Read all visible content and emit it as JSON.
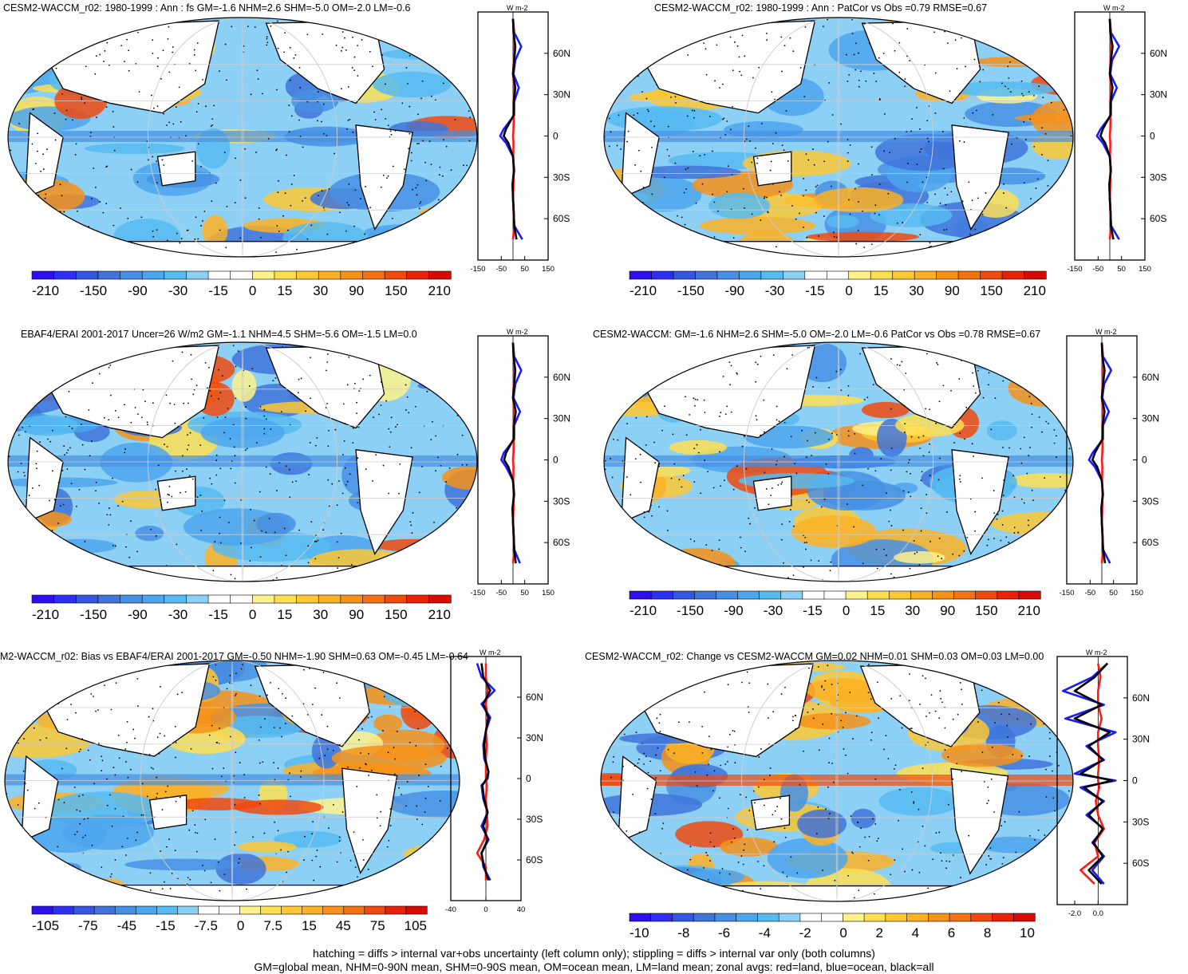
{
  "figure": {
    "footer_line1": "hatching = diffs > internal var+obs uncertainty (left column only); stippling = diffs > internal var only (both columns)",
    "footer_line2": "GM=global mean, NHM=0-90N mean, SHM=0-90S mean, OM=ocean mean, LM=land mean; zonal avgs: red=land, blue=ocean, black=all"
  },
  "colors": {
    "land": "#ff1a1a",
    "ocean": "#1a1aff",
    "all": "#000000",
    "colormap": [
      "#2e10ef",
      "#2d2ff5",
      "#3557e0",
      "#3f74db",
      "#4690e4",
      "#4ca6ed",
      "#56bbf1",
      "#8dd0f5",
      "#ffffff",
      "#ffffff",
      "#fff28a",
      "#fedf52",
      "#fdc832",
      "#fbb124",
      "#f6921a",
      "#f27214",
      "#ef4a0f",
      "#e82107",
      "#d80b04"
    ]
  },
  "panels": [
    {
      "id": "p1",
      "title": "CESM2-WACCM_r02: 1980-1999 : Ann : fs GM=-1.6 NHM=2.6 SHM=-5.0 OM=-2.0 LM=-0.6",
      "colorbar_labels": [
        "-210",
        "-150",
        "-90",
        "-30",
        "-15",
        "0",
        "15",
        "30",
        "90",
        "150",
        "210"
      ],
      "zonal_unit": "W m-2",
      "lat_ticks": [
        "60N",
        "30N",
        "0",
        "30S",
        "60S"
      ],
      "x_ticks": [
        "-150",
        "-50",
        "50",
        "150"
      ]
    },
    {
      "id": "p2",
      "title": "CESM2-WACCM_r02: 1980-1999 : Ann : PatCor vs Obs =0.79 RMSE=0.67",
      "colorbar_labels": [
        "-210",
        "-150",
        "-90",
        "-30",
        "-15",
        "0",
        "15",
        "30",
        "90",
        "150",
        "210"
      ],
      "zonal_unit": "W m-2",
      "lat_ticks": [
        "60N",
        "30N",
        "0",
        "30S",
        "60S"
      ],
      "x_ticks": [
        "-150",
        "-50",
        "50",
        "150"
      ]
    },
    {
      "id": "p3",
      "title": "EBAF4/ERAI 2001-2017 Uncer=26 W/m2 GM=-1.1 NHM=4.5 SHM=-5.6 OM=-1.5 LM=0.0",
      "colorbar_labels": [
        "-210",
        "-150",
        "-90",
        "-30",
        "-15",
        "0",
        "15",
        "30",
        "90",
        "150",
        "210"
      ],
      "zonal_unit": "W m-2",
      "lat_ticks": [
        "60N",
        "30N",
        "0",
        "30S",
        "60S"
      ],
      "x_ticks": [
        "-150",
        "-50",
        "50",
        "150"
      ]
    },
    {
      "id": "p4",
      "title": "CESM2-WACCM: GM=-1.6 NHM=2.6 SHM=-5.0 OM=-2.0 LM=-0.6 PatCor vs Obs =0.78 RMSE=0.67",
      "colorbar_labels": [
        "-210",
        "-150",
        "-90",
        "-30",
        "-15",
        "0",
        "15",
        "30",
        "90",
        "150",
        "210"
      ],
      "zonal_unit": "W m-2",
      "lat_ticks": [
        "60N",
        "30N",
        "0",
        "30S",
        "60S"
      ],
      "x_ticks": [
        "-150",
        "-50",
        "50",
        "150"
      ]
    },
    {
      "id": "p5",
      "title": "M2-WACCM_r02: Bias vs EBAF4/ERAI 2001-2017 GM=-0.50 NHM=-1.90 SHM=0.63 OM=-0.45 LM=-0.64",
      "colorbar_labels": [
        "-105",
        "-75",
        "-45",
        "-15",
        "-7.5",
        "0",
        "7.5",
        "15",
        "45",
        "75",
        "105"
      ],
      "zonal_unit": "W m-2",
      "lat_ticks": [
        "60N",
        "30N",
        "0",
        "30S",
        "60S"
      ],
      "x_ticks": [
        "-40",
        "0",
        "40"
      ]
    },
    {
      "id": "p6",
      "title": "CESM2-WACCM_r02: Change vs CESM2-WACCM GM=0.02 NHM=0.01 SHM=0.03 OM=0.03 LM=0.00",
      "colorbar_labels": [
        "-10",
        "-8",
        "-6",
        "-4",
        "-2",
        "0",
        "2",
        "4",
        "6",
        "8",
        "10"
      ],
      "zonal_unit": "W m-2",
      "lat_ticks": [
        "60N",
        "30N",
        "0",
        "30S",
        "60S"
      ],
      "x_ticks": [
        "-2.0",
        "0.0"
      ]
    }
  ],
  "chart_data": [
    {
      "type": "heatmap",
      "title": "CESM2-WACCM_r02: 1980-1999 : Ann : fs GM=-1.6 NHM=2.6 SHM=-5.0 OM=-2.0 LM=-0.6",
      "colorbar_levels": [
        -210,
        -150,
        -90,
        -30,
        -15,
        0,
        15,
        30,
        90,
        150,
        210
      ],
      "zonal_mean": {
        "lat": [
          85,
          75,
          65,
          55,
          45,
          35,
          25,
          15,
          5,
          0,
          -5,
          -15,
          -25,
          -35,
          -45,
          -55,
          -65,
          -75
        ],
        "series": [
          {
            "name": "ocean",
            "values": [
              0,
              5,
              35,
              10,
              2,
              25,
              5,
              5,
              -40,
              -55,
              -30,
              0,
              5,
              -2,
              0,
              3,
              5,
              40
            ]
          },
          {
            "name": "land",
            "values": [
              0,
              3,
              5,
              3,
              0,
              5,
              2,
              3,
              2,
              0,
              2,
              1,
              3,
              2,
              0,
              2,
              5,
              0
            ]
          },
          {
            "name": "all",
            "values": [
              0,
              2,
              10,
              5,
              0,
              10,
              3,
              2,
              -30,
              -40,
              -20,
              0,
              4,
              -2,
              0,
              3,
              5,
              15
            ]
          }
        ],
        "xlim": [
          -150,
          150
        ],
        "xlabel": "W m-2"
      }
    },
    {
      "type": "heatmap",
      "title": "CESM2-WACCM_r02: 1980-1999 : Ann : PatCor vs Obs =0.79 RMSE=0.67",
      "colorbar_levels": [
        -210,
        -150,
        -90,
        -30,
        -15,
        0,
        15,
        30,
        90,
        150,
        210
      ],
      "zonal_mean": {
        "lat": [
          85,
          75,
          65,
          55,
          45,
          35,
          25,
          15,
          5,
          0,
          -5,
          -15,
          -25,
          -35,
          -45,
          -55,
          -65,
          -75
        ],
        "series": [
          {
            "name": "ocean",
            "values": [
              0,
              5,
              40,
              10,
              2,
              30,
              5,
              5,
              -40,
              -55,
              -30,
              0,
              5,
              -2,
              0,
              3,
              5,
              40
            ]
          },
          {
            "name": "land",
            "values": [
              0,
              3,
              5,
              3,
              0,
              5,
              2,
              3,
              2,
              0,
              2,
              1,
              3,
              2,
              0,
              2,
              5,
              0
            ]
          },
          {
            "name": "all",
            "values": [
              0,
              2,
              12,
              5,
              0,
              12,
              3,
              2,
              -30,
              -40,
              -20,
              0,
              4,
              -2,
              0,
              3,
              5,
              15
            ]
          }
        ],
        "xlim": [
          -150,
          150
        ],
        "xlabel": "W m-2"
      }
    },
    {
      "type": "heatmap",
      "title": "EBAF4/ERAI 2001-2017 Uncer=26 W/m2 GM=-1.1 NHM=4.5 SHM=-5.6 OM=-1.5 LM=0.0",
      "colorbar_levels": [
        -210,
        -150,
        -90,
        -30,
        -15,
        0,
        15,
        30,
        90,
        150,
        210
      ],
      "zonal_mean": {
        "lat": [
          85,
          75,
          65,
          55,
          45,
          35,
          25,
          15,
          5,
          0,
          -5,
          -15,
          -25,
          -35,
          -45,
          -55,
          -65,
          -75
        ],
        "series": [
          {
            "name": "ocean",
            "values": [
              0,
              5,
              35,
              10,
              2,
              30,
              5,
              5,
              -40,
              -50,
              -30,
              0,
              5,
              -2,
              0,
              3,
              5,
              30
            ]
          },
          {
            "name": "land",
            "values": [
              0,
              3,
              5,
              3,
              0,
              5,
              2,
              3,
              2,
              0,
              2,
              1,
              3,
              2,
              0,
              2,
              5,
              0
            ]
          },
          {
            "name": "all",
            "values": [
              0,
              2,
              10,
              5,
              0,
              12,
              3,
              2,
              -30,
              -38,
              -20,
              0,
              4,
              -2,
              0,
              3,
              5,
              12
            ]
          }
        ],
        "xlim": [
          -150,
          150
        ],
        "xlabel": "W m-2"
      }
    },
    {
      "type": "heatmap",
      "title": "CESM2-WACCM: GM=-1.6 NHM=2.6 SHM=-5.0 OM=-2.0 LM=-0.6 PatCor vs Obs =0.78 RMSE=0.67",
      "colorbar_levels": [
        -210,
        -150,
        -90,
        -30,
        -15,
        0,
        15,
        30,
        90,
        150,
        210
      ],
      "zonal_mean": {
        "lat": [
          85,
          75,
          65,
          55,
          45,
          35,
          25,
          15,
          5,
          0,
          -5,
          -15,
          -25,
          -35,
          -45,
          -55,
          -65,
          -75
        ],
        "series": [
          {
            "name": "ocean",
            "values": [
              0,
              5,
              40,
              10,
              2,
              30,
              5,
              5,
              -40,
              -55,
              -30,
              0,
              5,
              -2,
              0,
              3,
              5,
              35
            ]
          },
          {
            "name": "land",
            "values": [
              0,
              3,
              5,
              3,
              0,
              5,
              2,
              3,
              2,
              0,
              2,
              1,
              3,
              2,
              0,
              2,
              5,
              0
            ]
          },
          {
            "name": "all",
            "values": [
              0,
              2,
              12,
              5,
              0,
              12,
              3,
              2,
              -30,
              -40,
              -20,
              0,
              4,
              -2,
              0,
              3,
              5,
              14
            ]
          }
        ],
        "xlim": [
          -150,
          150
        ],
        "xlabel": "W m-2"
      }
    },
    {
      "type": "heatmap",
      "title": "M2-WACCM_r02: Bias vs EBAF4/ERAI 2001-2017 GM=-0.50 NHM=-1.90 SHM=0.63 OM=-0.45 LM=-0.64",
      "colorbar_levels": [
        -105,
        -75,
        -45,
        -15,
        -7.5,
        0,
        7.5,
        15,
        45,
        75,
        105
      ],
      "zonal_mean": {
        "lat": [
          85,
          75,
          65,
          55,
          45,
          35,
          25,
          15,
          5,
          0,
          -5,
          -15,
          -25,
          -35,
          -45,
          -55,
          -65,
          -75
        ],
        "series": [
          {
            "name": "ocean",
            "values": [
              -10,
              -5,
              10,
              -5,
              5,
              0,
              -3,
              -2,
              3,
              2,
              -5,
              -3,
              2,
              -5,
              3,
              -5,
              -3,
              5
            ]
          },
          {
            "name": "land",
            "values": [
              0,
              0,
              2,
              0,
              2,
              0,
              1,
              0,
              0,
              0,
              1,
              0,
              1,
              2,
              -2,
              -10,
              0,
              0
            ]
          },
          {
            "name": "all",
            "values": [
              -5,
              -3,
              5,
              -3,
              3,
              0,
              -2,
              -1,
              3,
              1,
              -4,
              -2,
              2,
              -3,
              2,
              -5,
              -2,
              3
            ]
          }
        ],
        "xlim": [
          -40,
          40
        ],
        "xlabel": "W m-2"
      }
    },
    {
      "type": "heatmap",
      "title": "CESM2-WACCM_r02: Change vs CESM2-WACCM GM=0.02 NHM=0.01 SHM=0.03 OM=0.03 LM=0.00",
      "colorbar_levels": [
        -10,
        -8,
        -6,
        -4,
        -2,
        0,
        2,
        4,
        6,
        8,
        10
      ],
      "zonal_mean": {
        "lat": [
          85,
          75,
          65,
          55,
          45,
          35,
          25,
          15,
          5,
          0,
          -5,
          -15,
          -25,
          -35,
          -45,
          -55,
          -65,
          -75
        ],
        "series": [
          {
            "name": "ocean",
            "values": [
              0.8,
              -0.5,
              -3.0,
              0.5,
              -2.8,
              1.5,
              -1.0,
              0.5,
              -2.0,
              1.5,
              -1.5,
              0.5,
              -1.0,
              0.5,
              -0.5,
              0.5,
              -0.5,
              0.5
            ]
          },
          {
            "name": "land",
            "values": [
              0,
              0.2,
              0,
              0,
              0.3,
              0,
              0,
              0.1,
              0,
              0,
              0.1,
              -0.2,
              0,
              0.5,
              -0.3,
              0,
              -1.5,
              -0.3
            ]
          },
          {
            "name": "all",
            "values": [
              0.8,
              -0.3,
              -2.0,
              0.3,
              -2.0,
              1.0,
              -0.8,
              0.4,
              -1.5,
              1.2,
              -1.2,
              0.4,
              -0.8,
              0.4,
              -0.4,
              0.4,
              -0.8,
              0.3
            ]
          }
        ],
        "xlim": [
          -3.5,
          2.5
        ],
        "xlabel": "W m-2"
      }
    }
  ]
}
